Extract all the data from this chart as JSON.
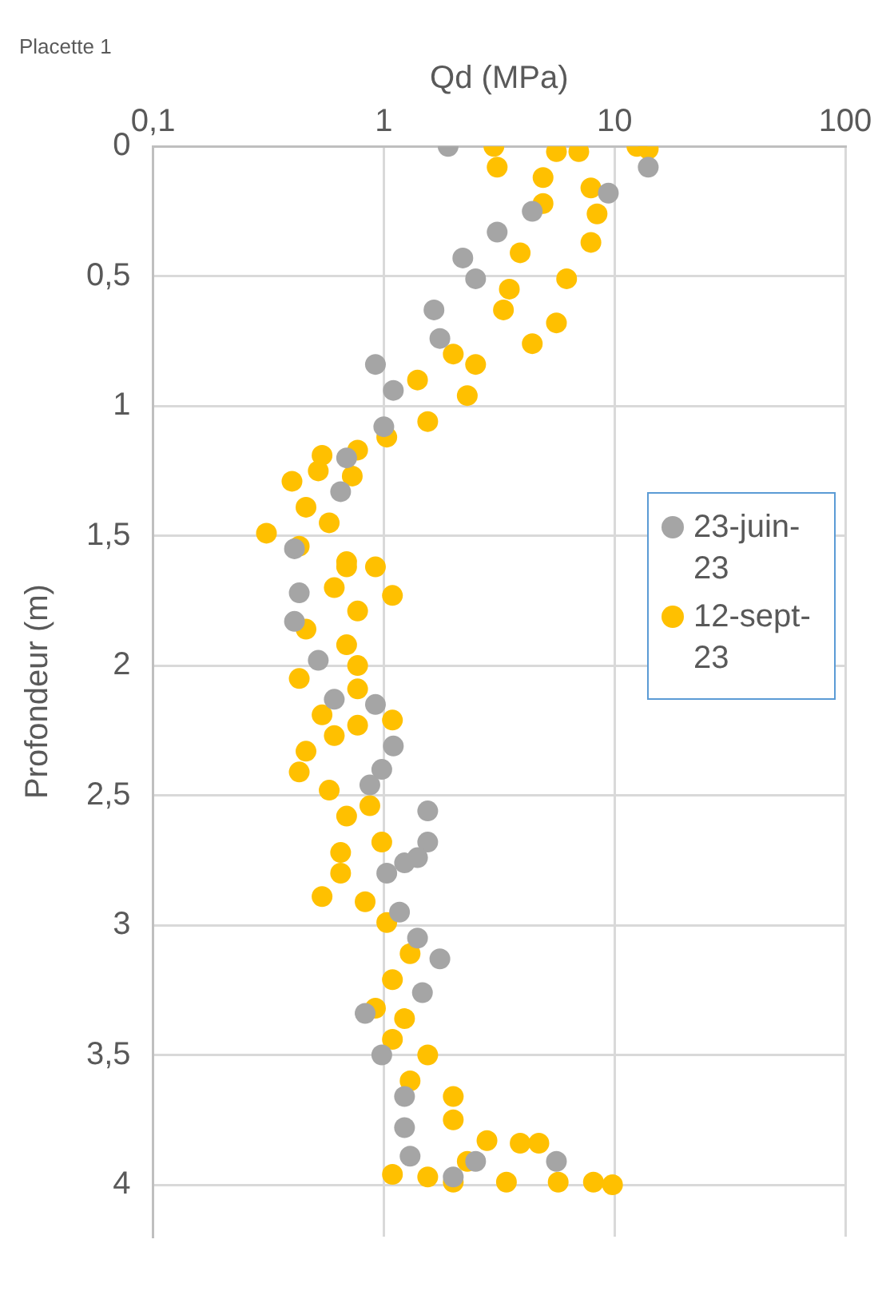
{
  "chart_data": {
    "type": "scatter",
    "title": "Placette 1",
    "xlabel": "Qd (MPa)",
    "ylabel": "Profondeur (m)",
    "log": "x",
    "xlim": [
      0.1,
      100
    ],
    "xticks": [
      {
        "value": 0.1,
        "label": "0,1"
      },
      1,
      10,
      100
    ],
    "ylim": [
      4.2,
      0
    ],
    "yticks": [
      0,
      {
        "value": 0.5,
        "label": "0,5"
      },
      1,
      {
        "value": 1.5,
        "label": "1,5"
      },
      2,
      {
        "value": 2.5,
        "label": "2,5"
      },
      3,
      {
        "value": 3.5,
        "label": "3,5"
      },
      4
    ],
    "grid": true,
    "legend": "right",
    "marker": "circle",
    "series": [
      {
        "name": "23-juin-23",
        "color": "#a5a5a5",
        "x": [
          1.9,
          14,
          9.4,
          4.4,
          3.1,
          2.2,
          2.5,
          1.65,
          1.75,
          0.92,
          1.1,
          1.0,
          0.69,
          0.65,
          0.41,
          0.43,
          0.41,
          0.52,
          0.61,
          0.92,
          1.1,
          0.98,
          0.87,
          1.55,
          1.55,
          1.23,
          1.4,
          1.03,
          1.17,
          1.4,
          1.75,
          1.47,
          0.83,
          0.98,
          1.23,
          1.23,
          1.3,
          2.5,
          5.6,
          2.0
        ],
        "values": [
          0,
          0.08,
          0.18,
          0.25,
          0.33,
          0.43,
          0.51,
          0.63,
          0.74,
          0.84,
          0.94,
          1.08,
          1.2,
          1.33,
          1.55,
          1.72,
          1.83,
          1.98,
          2.13,
          2.15,
          2.31,
          2.4,
          2.46,
          2.56,
          2.68,
          2.76,
          2.74,
          2.8,
          2.95,
          3.05,
          3.13,
          3.26,
          3.34,
          3.5,
          3.66,
          3.78,
          3.89,
          3.91,
          3.91,
          3.97
        ]
      },
      {
        "name": "12-sept-23",
        "color": "#ffc000",
        "x": [
          3.0,
          12.5,
          14,
          5.6,
          7.0,
          3.1,
          4.9,
          7.9,
          4.9,
          8.4,
          7.9,
          3.9,
          6.2,
          3.5,
          5.6,
          3.3,
          4.4,
          2.0,
          2.5,
          1.4,
          2.3,
          1.55,
          1.03,
          0.77,
          0.54,
          0.52,
          0.73,
          0.4,
          0.46,
          0.58,
          0.31,
          0.43,
          0.69,
          0.69,
          0.92,
          1.09,
          0.61,
          0.77,
          0.46,
          0.69,
          0.77,
          0.43,
          0.77,
          0.54,
          1.09,
          0.77,
          0.61,
          0.46,
          0.43,
          0.58,
          0.87,
          0.69,
          0.98,
          0.65,
          0.65,
          0.54,
          0.83,
          1.03,
          1.3,
          1.09,
          0.92,
          1.23,
          1.09,
          1.55,
          1.3,
          2.0,
          2.0,
          2.8,
          3.9,
          4.7,
          2.3,
          1.09,
          1.55,
          2.0,
          3.4,
          5.7,
          8.1,
          9.8
        ],
        "values": [
          0,
          0,
          0.01,
          0.02,
          0.02,
          0.08,
          0.12,
          0.16,
          0.22,
          0.26,
          0.37,
          0.41,
          0.51,
          0.55,
          0.68,
          0.63,
          0.76,
          0.8,
          0.84,
          0.9,
          0.96,
          1.06,
          1.12,
          1.17,
          1.19,
          1.25,
          1.27,
          1.29,
          1.39,
          1.45,
          1.49,
          1.54,
          1.6,
          1.62,
          1.62,
          1.73,
          1.7,
          1.79,
          1.86,
          1.92,
          2.0,
          2.05,
          2.09,
          2.19,
          2.21,
          2.23,
          2.27,
          2.33,
          2.41,
          2.48,
          2.54,
          2.58,
          2.68,
          2.72,
          2.8,
          2.89,
          2.91,
          2.99,
          3.11,
          3.21,
          3.32,
          3.36,
          3.44,
          3.5,
          3.6,
          3.66,
          3.75,
          3.83,
          3.84,
          3.84,
          3.91,
          3.96,
          3.97,
          3.99,
          3.99,
          3.99,
          3.99,
          4.0
        ]
      }
    ]
  }
}
